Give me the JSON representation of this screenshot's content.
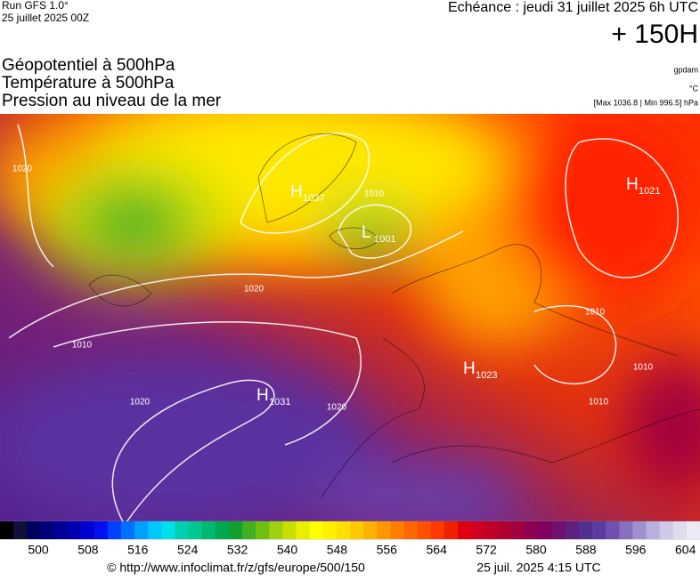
{
  "header": {
    "run": "Run GFS 1.0°",
    "date": "25 juillet 2025 00Z",
    "echeance": "Echéance : jeudi 31 juillet 2025 6h UTC",
    "lead": "+ 150H",
    "fields": [
      "Géopotentiel à 500hPa",
      "Température à 500hPa",
      "Pression au niveau de la mer"
    ],
    "units": [
      "gpdam",
      "°C",
      "[Max 1036.8 | Min 996.5] hPa"
    ]
  },
  "map": {
    "centers": [
      {
        "letter": "H",
        "value": "1037"
      },
      {
        "letter": "L",
        "value": "1001"
      },
      {
        "letter": "H",
        "value": "1021"
      },
      {
        "letter": "H",
        "value": "1023"
      },
      {
        "letter": "H",
        "value": "1031"
      }
    ],
    "isobar_labels": [
      "1020",
      "1020",
      "1020",
      "1020",
      "1010",
      "1010",
      "1010",
      "1010",
      "1010"
    ]
  },
  "colorbar": {
    "labels": [
      "500",
      "508",
      "516",
      "524",
      "532",
      "540",
      "548",
      "556",
      "564",
      "572",
      "580",
      "588",
      "596",
      "604"
    ],
    "colors": [
      "#000000",
      "#10103a",
      "#000060",
      "#00007a",
      "#000094",
      "#0000b0",
      "#0000d0",
      "#0010f0",
      "#0040ff",
      "#0070ff",
      "#00a0ff",
      "#00c8ff",
      "#00e0e8",
      "#00d0b0",
      "#00c890",
      "#00b870",
      "#00a850",
      "#10a030",
      "#40b020",
      "#70c010",
      "#a0d010",
      "#c8e000",
      "#e8f000",
      "#ffff00",
      "#fff000",
      "#ffe000",
      "#ffc800",
      "#ffb000",
      "#ff9800",
      "#ff8000",
      "#ff6800",
      "#ff5000",
      "#ff3800",
      "#f02000",
      "#e00010",
      "#d00020",
      "#c00028",
      "#b00030",
      "#a00040",
      "#900050",
      "#800060",
      "#701070",
      "#602080",
      "#503090",
      "#5a3ca0",
      "#7050b0",
      "#8870c0",
      "#a090d0",
      "#b8b0dc",
      "#d0c8e8",
      "#e0dcef",
      "#ece8f4"
    ]
  },
  "footer": {
    "url": "© http://www.infoclimat.fr/z/gfs/europe/500/150",
    "stamp": "25 juil. 2025  4:15 UTC"
  }
}
